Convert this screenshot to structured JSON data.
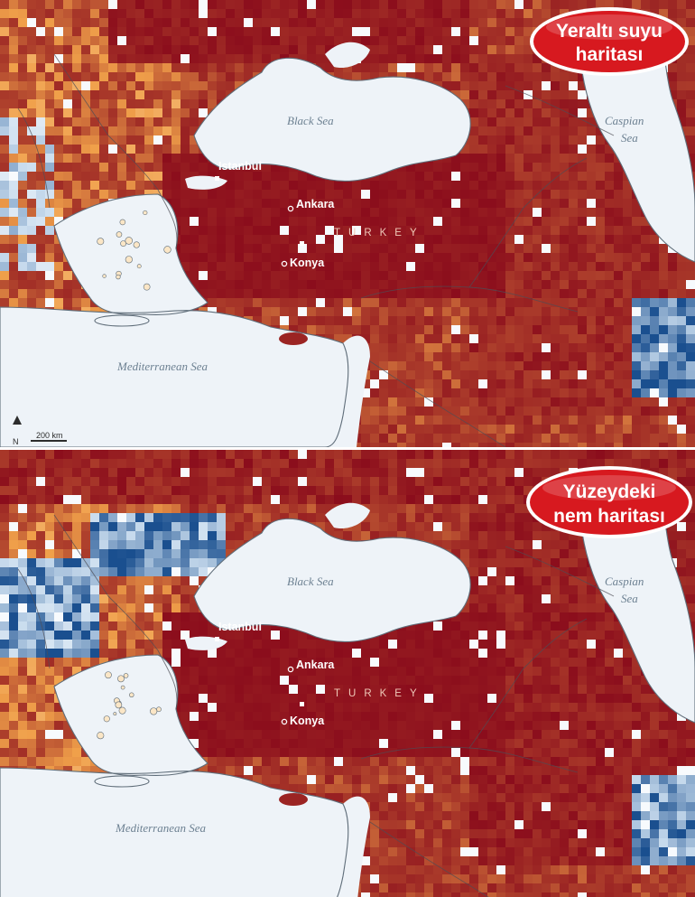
{
  "panels": [
    {
      "title_lines": [
        "Yeraltı suyu",
        "haritası"
      ],
      "variant": "groundwater",
      "colors": {
        "deep_red": "#8b0d1c",
        "orange": "#f0a04a",
        "pale": "#fbe6c6",
        "blue": "#1a4f8f",
        "light_blue": "#c9dcee",
        "badge": "#d7191f"
      },
      "labels": {
        "black_sea": "Black Sea",
        "caspian_line1": "Caspian",
        "caspian_line2": "Sea",
        "mediterranean": "Mediterranean Sea",
        "istanbul": "Istanbul",
        "ankara": "Ankara",
        "konya": "Konya",
        "turkey": "TURKEY"
      },
      "scale_bar": "200 km"
    },
    {
      "title_lines": [
        "Yüzeydeki",
        "nem haritası"
      ],
      "variant": "surface_moisture",
      "colors": {
        "deep_red": "#8b0d1c",
        "orange": "#f0a04a",
        "pale": "#fbe6c6",
        "blue": "#1a4f8f",
        "light_blue": "#c9dcee",
        "badge": "#d7191f"
      },
      "labels": {
        "black_sea": "Black Sea",
        "caspian_line1": "Caspian",
        "caspian_line2": "Sea",
        "mediterranean": "Mediterranean Sea",
        "istanbul": "Istanbul",
        "ankara": "Ankara",
        "konya": "Konya",
        "turkey": "TURKEY"
      }
    }
  ]
}
